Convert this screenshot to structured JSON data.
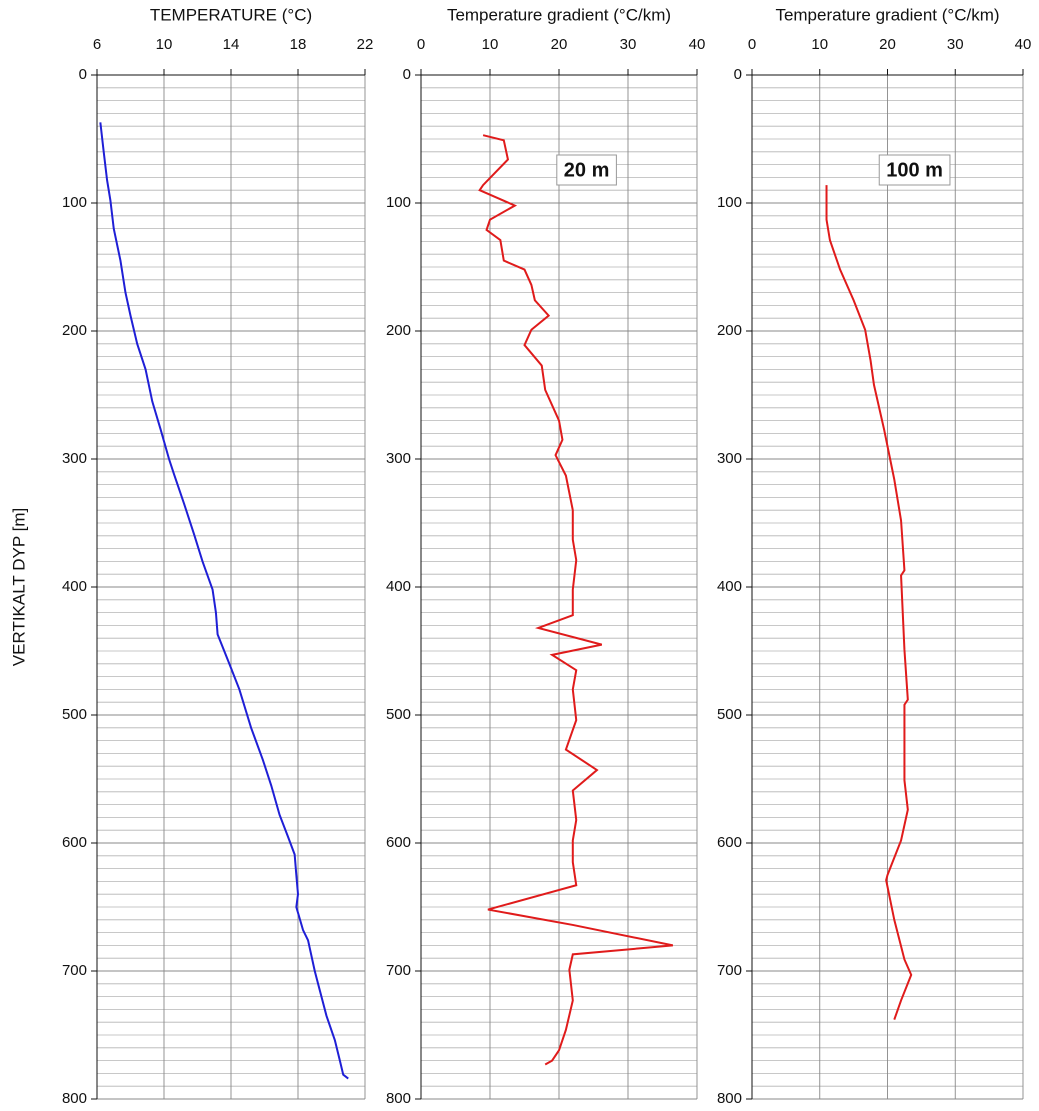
{
  "chart_data": [
    {
      "type": "line",
      "title": "TEMPERATURE (°C)",
      "ylabel": "VERTIKALT DYP [m]",
      "xlim": [
        6,
        22
      ],
      "xticks": [
        6,
        10,
        14,
        18,
        22
      ],
      "ylim": [
        0,
        800
      ],
      "yticks": [
        0,
        100,
        200,
        300,
        400,
        500,
        600,
        700,
        800
      ],
      "y_inverted": true,
      "grid": true,
      "minor_grid_step": 10,
      "series": [
        {
          "color": "#1f1fd6",
          "values": [
            6.2,
            6.4,
            6.6,
            6.8,
            7.0,
            7.4,
            7.7,
            8.0,
            8.4,
            8.9,
            9.3,
            9.8,
            10.3,
            10.6,
            11.2,
            11.8,
            12.3,
            12.9,
            13.1,
            13.2,
            13.9,
            14.5,
            15.2,
            15.9,
            16.4,
            16.9,
            17.4,
            17.8,
            17.9,
            18.0,
            17.9,
            18.1,
            18.3,
            18.6,
            19.0,
            19.3,
            19.7,
            20.2,
            20.5,
            20.7,
            21.0
          ],
          "depth": [
            37,
            60,
            82,
            98,
            120,
            145,
            170,
            188,
            210,
            230,
            255,
            277,
            300,
            312,
            335,
            359,
            380,
            402,
            420,
            437,
            460,
            480,
            510,
            535,
            555,
            578,
            595,
            609,
            625,
            640,
            650,
            659,
            668,
            676,
            700,
            715,
            735,
            754,
            770,
            781,
            784
          ]
        }
      ]
    },
    {
      "type": "line",
      "title": "Temperature gradient (°C/km)",
      "annotation": "20 m",
      "xlim": [
        0,
        40
      ],
      "xticks": [
        0,
        10,
        20,
        30,
        40
      ],
      "ylim": [
        0,
        800
      ],
      "yticks": [
        0,
        100,
        200,
        300,
        400,
        500,
        600,
        700,
        800
      ],
      "y_inverted": true,
      "grid": true,
      "minor_grid_step": 10,
      "series": [
        {
          "color": "#e01b1b",
          "values": [
            9,
            12,
            12.6,
            9,
            8.5,
            13.6,
            10,
            9.5,
            11.5,
            12,
            15,
            16,
            16.5,
            18.5,
            16,
            15,
            17.5,
            18,
            20,
            20.5,
            19.5,
            21,
            22,
            22,
            22.5,
            22,
            22,
            17,
            26.2,
            19,
            22.5,
            22,
            22.5,
            21,
            25.5,
            22,
            22.5,
            22,
            22,
            22.5,
            9.7,
            22,
            36.5,
            22,
            21.5,
            22,
            21,
            20,
            19,
            18
          ],
          "depth": [
            47,
            51,
            66,
            86,
            90,
            102,
            113,
            121,
            129,
            145,
            152,
            164,
            176,
            188,
            199,
            211,
            227,
            246,
            270,
            285,
            297,
            313,
            340,
            363,
            379,
            402,
            422,
            432,
            445,
            453,
            465,
            480,
            504,
            527,
            543,
            559,
            582,
            598,
            615,
            633,
            652,
            664,
            680,
            687,
            699,
            723,
            746,
            762,
            770,
            773
          ]
        }
      ]
    },
    {
      "type": "line",
      "title": "Temperature gradient (°C/km)",
      "annotation": "100 m",
      "xlim": [
        0,
        40
      ],
      "xticks": [
        0,
        10,
        20,
        30,
        40
      ],
      "ylim": [
        0,
        800
      ],
      "yticks": [
        0,
        100,
        200,
        300,
        400,
        500,
        600,
        700,
        800
      ],
      "y_inverted": true,
      "grid": true,
      "minor_grid_step": 10,
      "series": [
        {
          "color": "#e01b1b",
          "values": [
            11,
            11,
            11.5,
            13,
            15,
            16.7,
            17.5,
            18,
            19.5,
            21,
            22,
            22.5,
            22,
            22.5,
            23,
            22.5,
            22.5,
            23,
            22,
            20,
            19.8,
            21,
            22.5,
            23.5,
            22,
            21
          ],
          "depth": [
            86,
            113,
            129,
            152,
            176,
            199,
            223,
            242,
            277,
            316,
            348,
            387,
            391,
            449,
            488,
            492,
            551,
            574,
            598,
            625,
            629,
            660,
            691,
            703,
            723,
            738
          ]
        }
      ]
    }
  ]
}
